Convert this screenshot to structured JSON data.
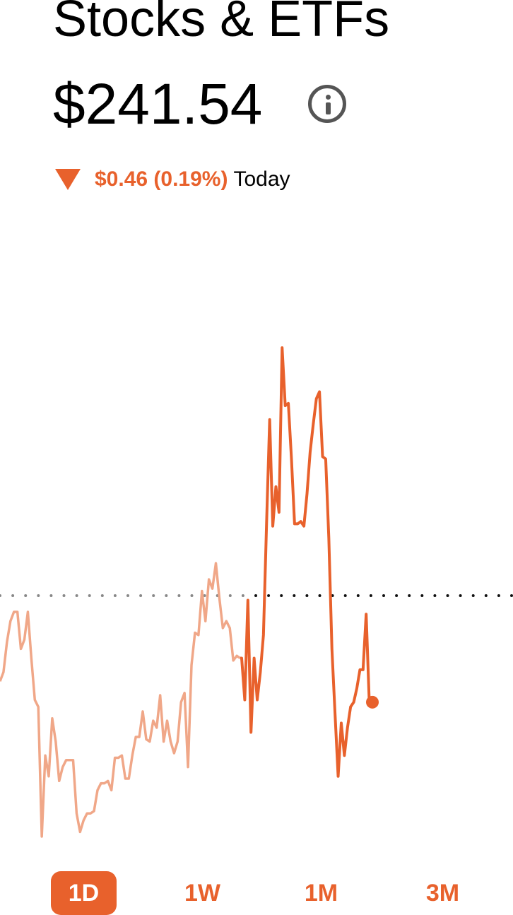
{
  "header": {
    "title": "Stocks & ETFs",
    "value": "$241.54",
    "info_icon": "info-circle-icon"
  },
  "change": {
    "direction_icon": "triangle-down-icon",
    "amount": "$0.46 (0.19%)",
    "period": "Today",
    "color": "#E8612C"
  },
  "colors": {
    "accent": "#E8612C",
    "history_line": "#F0A788"
  },
  "chart_data": {
    "type": "line",
    "reference_value": 242.0,
    "series": [
      {
        "values": [
          241.63,
          241.67,
          241.8,
          241.89,
          241.93,
          241.93,
          241.77,
          241.81,
          241.93,
          241.73,
          241.55,
          241.52,
          240.96,
          241.31,
          241.22,
          241.47,
          241.37,
          241.2,
          241.26,
          241.29,
          241.29,
          241.29,
          241.06,
          240.98,
          241.03,
          241.06,
          241.06,
          241.07,
          241.16,
          241.19,
          241.19,
          241.2,
          241.16,
          241.3,
          241.3,
          241.31,
          241.21,
          241.21,
          241.31,
          241.39,
          241.39,
          241.5,
          241.38,
          241.37,
          241.46,
          241.43,
          241.57,
          241.37,
          241.46,
          241.37,
          241.32,
          241.37,
          241.54,
          241.58,
          241.26,
          241.7,
          241.84,
          241.83,
          242.02,
          241.89,
          242.07,
          242.03,
          242.14,
          241.99,
          241.86,
          241.89,
          241.86,
          241.72,
          241.74,
          241.73
        ]
      },
      {
        "values": [
          241.73,
          241.55,
          241.98,
          241.41,
          241.73,
          241.55,
          241.67,
          241.83,
          242.31,
          242.76,
          242.3,
          242.47,
          242.36,
          243.07,
          242.82,
          242.83,
          242.59,
          242.31,
          242.31,
          242.32,
          242.3,
          242.44,
          242.62,
          242.74,
          242.85,
          242.88,
          242.6,
          242.59,
          242.25,
          241.77,
          241.49,
          241.22,
          241.45,
          241.31,
          241.43,
          241.52,
          241.54,
          241.6,
          241.68,
          241.68,
          241.92,
          241.54,
          241.54
        ]
      }
    ]
  },
  "range_tabs": [
    {
      "label": "1D",
      "selected": true
    },
    {
      "label": "1W",
      "selected": false
    },
    {
      "label": "1M",
      "selected": false
    },
    {
      "label": "3M",
      "selected": false
    }
  ]
}
